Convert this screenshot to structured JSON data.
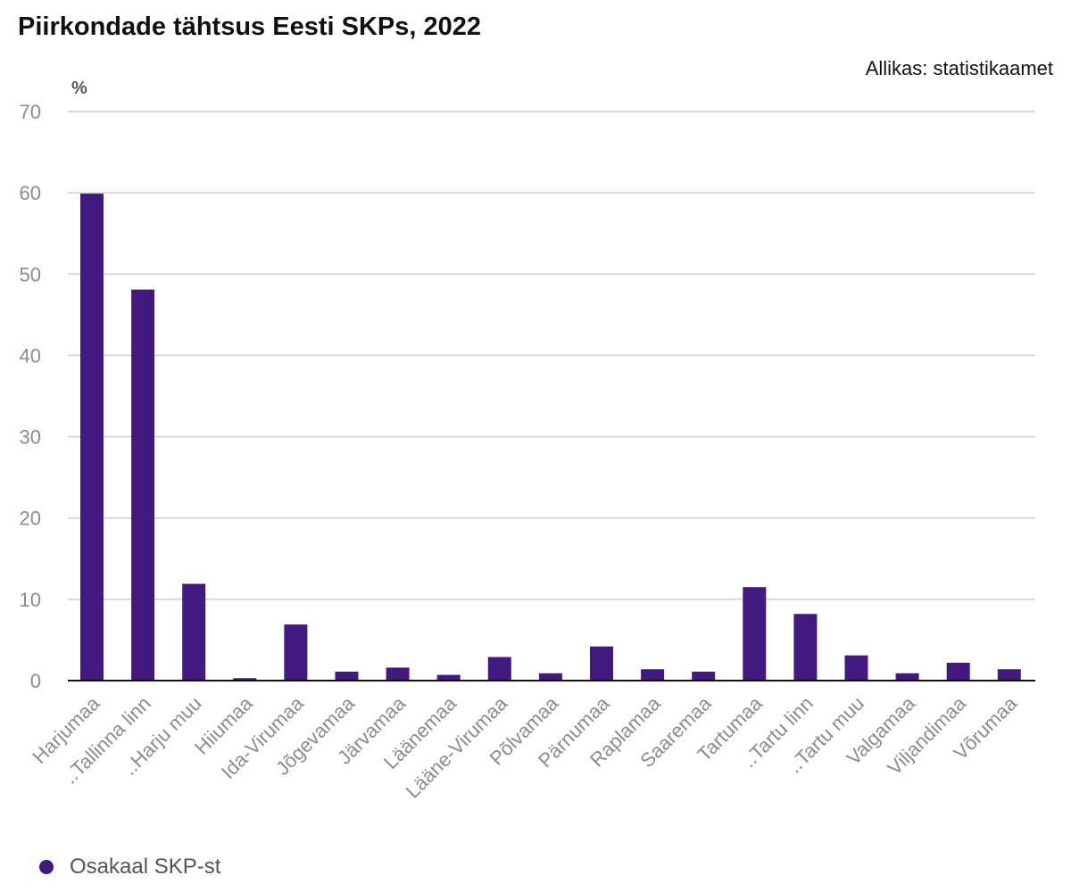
{
  "header": {
    "title": "Piirkondade tähtsus Eesti SKPs, 2022",
    "source": "Allikas: statistikaamet"
  },
  "colors": {
    "bar": "#41197f",
    "grid": "#d9d9d9",
    "axis": "#111111",
    "tick_text": "#8c8c8c"
  },
  "chart_data": {
    "type": "bar",
    "title": "Piirkondade tähtsus Eesti SKPs, 2022",
    "xlabel": "",
    "ylabel": "%",
    "ylim": [
      0,
      70
    ],
    "yticks": [
      0,
      10,
      20,
      30,
      40,
      50,
      60,
      70
    ],
    "grid": true,
    "legend_position": "bottom-left",
    "categories": [
      "Harjumaa",
      "..Tallinna linn",
      "..Harju muu",
      "Hiiumaa",
      "Ida-Virumaa",
      "Jõgevamaa",
      "Järvamaa",
      "Läänemaa",
      "Lääne-Virumaa",
      "Põlvamaa",
      "Pärnumaa",
      "Raplamaa",
      "Saaremaa",
      "Tartumaa",
      "..Tartu linn",
      "..Tartu muu",
      "Valgamaa",
      "Viljandimaa",
      "Võrumaa"
    ],
    "series": [
      {
        "name": "Osakaal SKP-st",
        "values": [
          59.9,
          48.1,
          11.9,
          0.3,
          6.9,
          1.1,
          1.6,
          0.7,
          2.9,
          0.9,
          4.2,
          1.4,
          1.1,
          11.5,
          8.2,
          3.1,
          0.9,
          2.2,
          1.4
        ]
      }
    ]
  }
}
